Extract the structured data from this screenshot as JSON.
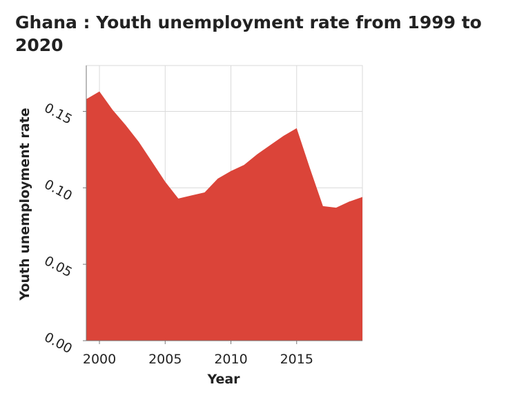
{
  "chart_data": {
    "type": "area",
    "title": "Ghana : Youth unemployment rate from 1999 to 2020",
    "xlabel": "Year",
    "ylabel": "Youth unemployment rate",
    "xlim": [
      1999,
      2020
    ],
    "ylim": [
      0,
      0.18
    ],
    "xticks": [
      2000,
      2005,
      2010,
      2015
    ],
    "xtick_labels": [
      "2000",
      "2005",
      "2010",
      "2015"
    ],
    "yticks": [
      0.0,
      0.05,
      0.1,
      0.15
    ],
    "ytick_labels": [
      "0.00",
      "0.05",
      "0.10",
      "0.15"
    ],
    "grid": true,
    "series": [
      {
        "color": "#db4439",
        "x": [
          1999,
          2000,
          2001,
          2002,
          2003,
          2004,
          2005,
          2006,
          2007,
          2008,
          2009,
          2010,
          2011,
          2012,
          2013,
          2014,
          2015,
          2016,
          2017,
          2018,
          2019,
          2020
        ],
        "y": [
          0.158,
          0.163,
          0.151,
          0.141,
          0.13,
          0.117,
          0.104,
          0.093,
          0.095,
          0.097,
          0.106,
          0.111,
          0.115,
          0.122,
          0.128,
          0.134,
          0.139,
          0.113,
          0.088,
          0.087,
          0.091,
          0.094
        ]
      }
    ]
  },
  "colors": {
    "area_fill": "#db4439",
    "grid": "#d9d9d9",
    "axis": "#777777",
    "text": "#222222"
  }
}
